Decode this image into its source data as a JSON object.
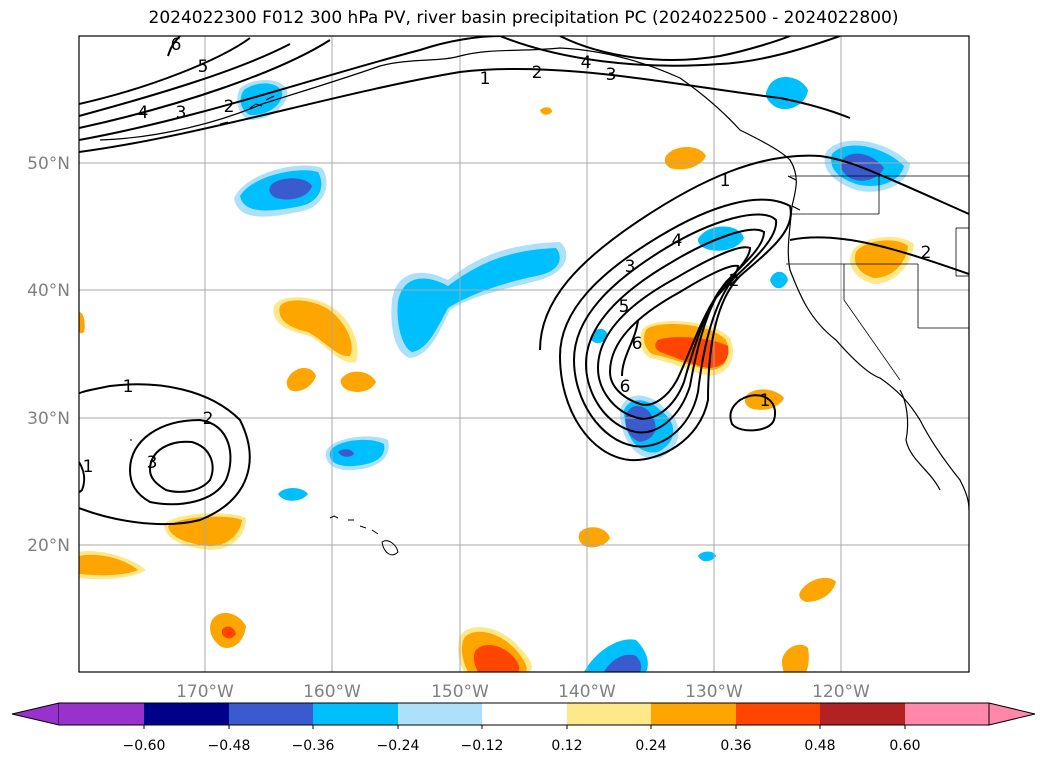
{
  "title": "2024022300 F012 300 hPa PV, river basin precipitation PC (2024022500 - 2024022800)",
  "map": {
    "lon_range": [
      -180,
      -110
    ],
    "lat_range": [
      10,
      60
    ],
    "lon_ticks": [
      {
        "value": -170,
        "label": "170°W"
      },
      {
        "value": -160,
        "label": "160°W"
      },
      {
        "value": -150,
        "label": "150°W"
      },
      {
        "value": -140,
        "label": "140°W"
      },
      {
        "value": -130,
        "label": "130°W"
      },
      {
        "value": -120,
        "label": "120°W"
      }
    ],
    "lat_ticks": [
      {
        "value": 20,
        "label": "20°N"
      },
      {
        "value": 30,
        "label": "30°N"
      },
      {
        "value": 40,
        "label": "40°N"
      },
      {
        "value": 50,
        "label": "50°N"
      }
    ],
    "gridlines": true
  },
  "colorbar": {
    "levels": [
      -0.6,
      -0.48,
      -0.36,
      -0.24,
      -0.12,
      0.12,
      0.24,
      0.36,
      0.48,
      0.6
    ],
    "labels": [
      "−0.60",
      "−0.48",
      "−0.36",
      "−0.24",
      "−0.12",
      "0.12",
      "0.24",
      "0.36",
      "0.48",
      "0.60"
    ],
    "colors": [
      "#9932CC",
      "#00008B",
      "#3A5BCD",
      "#00BFFF",
      "#ADE0FA",
      "#FFFFFF",
      "#FFE88A",
      "#FFA500",
      "#FF4500",
      "#B22222",
      "#FF88AA"
    ],
    "extend": "both"
  },
  "pv_contours": {
    "labels": [
      "1",
      "2",
      "3",
      "4",
      "5",
      "6"
    ]
  },
  "chart_data": {
    "type": "map",
    "title": "2024022300 F012 300 hPa PV, river basin precipitation PC (2024022500 - 2024022800)",
    "precip_pc_anomalies": [
      {
        "center": [
          -166,
          55.5
        ],
        "sign": "negative",
        "peak": -0.36
      },
      {
        "center": [
          -163,
          47.5
        ],
        "sign": "negative",
        "peak": -0.48
      },
      {
        "center": [
          -150,
          41
        ],
        "sign": "negative",
        "peak": -0.36
      },
      {
        "center": [
          -158,
          25.5
        ],
        "sign": "negative",
        "peak": -0.48
      },
      {
        "center": [
          -134.5,
          30.5
        ],
        "sign": "negative",
        "peak": -0.48
      },
      {
        "center": [
          -117.5,
          49
        ],
        "sign": "negative",
        "peak": -0.48
      },
      {
        "center": [
          -162,
          36.5
        ],
        "sign": "positive",
        "peak": 0.24
      },
      {
        "center": [
          -131.5,
          35.5
        ],
        "sign": "positive",
        "peak": 0.48
      },
      {
        "center": [
          -168.5,
          21
        ],
        "sign": "positive",
        "peak": 0.24
      },
      {
        "center": [
          -116.5,
          41.5
        ],
        "sign": "positive",
        "peak": 0.24
      },
      {
        "center": [
          -146.5,
          12.5
        ],
        "sign": "positive",
        "peak": 0.48
      },
      {
        "center": [
          -168,
          13
        ],
        "sign": "positive",
        "peak": 0.36
      }
    ],
    "pv_contour_levels": [
      1,
      2,
      3,
      4,
      5,
      6
    ]
  }
}
